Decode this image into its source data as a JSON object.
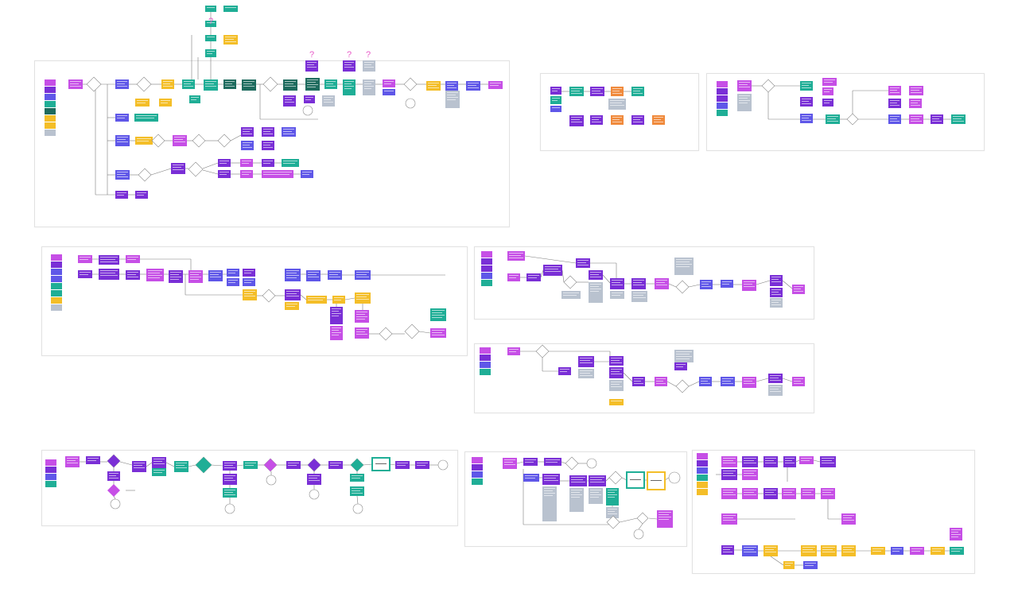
{
  "canvas": {
    "background": "#ffffff",
    "zoom_note": "",
    "qmark": "?"
  },
  "palette": {
    "magenta": "#c64fe6",
    "purple": "#7a2fd6",
    "indigo": "#5f57e8",
    "teal": "#1fae96",
    "darkteal": "#1e6b5e",
    "yellow": "#f4be28",
    "orange": "#f08a3c",
    "gray": "#b9c2cf",
    "line": "#7b7b7b",
    "pink_question": "#e85ac8"
  },
  "legend_colors": [
    "magenta",
    "purple",
    "indigo",
    "teal",
    "darkteal",
    "yellow",
    "gray"
  ]
}
